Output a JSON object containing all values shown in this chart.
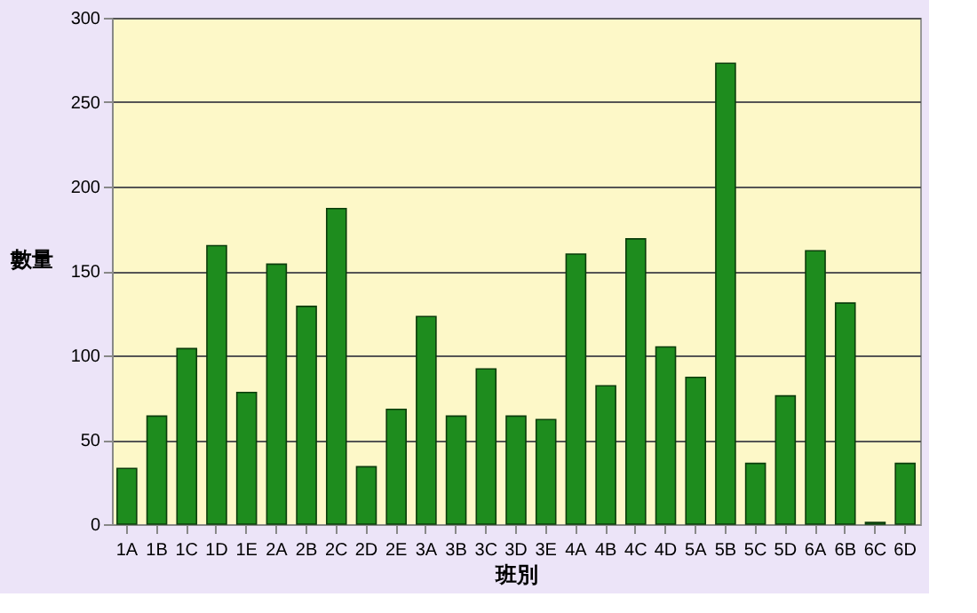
{
  "chart_data": {
    "type": "bar",
    "xlabel": "班別",
    "ylabel": "數量",
    "categories": [
      "1A",
      "1B",
      "1C",
      "1D",
      "1E",
      "2A",
      "2B",
      "2C",
      "2D",
      "2E",
      "3A",
      "3B",
      "3C",
      "3D",
      "3E",
      "4A",
      "4B",
      "4C",
      "4D",
      "5A",
      "5B",
      "5C",
      "5D",
      "6A",
      "6B",
      "6C",
      "6D"
    ],
    "values": [
      33,
      64,
      104,
      165,
      78,
      154,
      129,
      187,
      34,
      68,
      123,
      64,
      92,
      64,
      62,
      160,
      82,
      169,
      105,
      87,
      273,
      36,
      76,
      162,
      131,
      1,
      36
    ],
    "color": "#1e8c1e",
    "ylim": [
      0,
      300
    ],
    "yticks": [
      0,
      50,
      100,
      150,
      200,
      250,
      300
    ],
    "grid": "y"
  }
}
